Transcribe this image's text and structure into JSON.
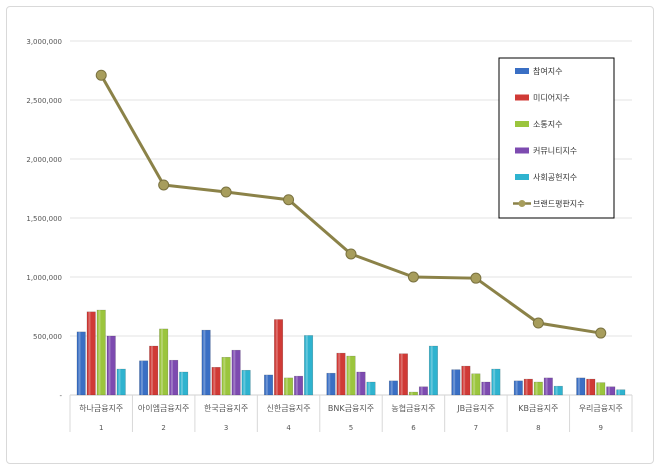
{
  "chart_data": {
    "type": "bar",
    "title": "",
    "xlabel": "",
    "ylabel": "",
    "ylim": [
      0,
      3000000
    ],
    "yticks": [
      "-",
      "500,000",
      "1,000,000",
      "1,500,000",
      "2,000,000",
      "2,500,000",
      "3,000,000"
    ],
    "grid": true,
    "legend_position": "top-right",
    "categories": [
      "하나금융지주",
      "아이엠금융지주",
      "한국금융지주",
      "신한금융지주",
      "BNK금융지주",
      "농협금융지주",
      "JB금융지주",
      "KB금융지주",
      "우리금융지주"
    ],
    "ranks": [
      "1",
      "2",
      "3",
      "4",
      "5",
      "6",
      "7",
      "8",
      "9"
    ],
    "series": [
      {
        "name": "참여지수",
        "color": "#3a6fc4",
        "values": [
          535000,
          290000,
          550000,
          170000,
          185000,
          120000,
          215000,
          120000,
          145000
        ]
      },
      {
        "name": "미디어지수",
        "color": "#d03a36",
        "values": [
          705000,
          415000,
          235000,
          640000,
          355000,
          350000,
          245000,
          135000,
          135000
        ]
      },
      {
        "name": "소통지수",
        "color": "#9bc53d",
        "values": [
          720000,
          560000,
          320000,
          145000,
          330000,
          25000,
          180000,
          110000,
          105000
        ]
      },
      {
        "name": "커뮤니티지수",
        "color": "#7d4bb0",
        "values": [
          500000,
          295000,
          380000,
          160000,
          195000,
          70000,
          110000,
          145000,
          70000
        ]
      },
      {
        "name": "사회공헌지수",
        "color": "#2fb3cf",
        "values": [
          220000,
          195000,
          210000,
          505000,
          110000,
          415000,
          220000,
          75000,
          45000
        ]
      }
    ],
    "line": {
      "name": "브랜드평판지수",
      "color": "#8b8248",
      "values": [
        2710000,
        1780000,
        1720000,
        1655000,
        1195000,
        1000000,
        990000,
        610000,
        525000
      ]
    }
  }
}
